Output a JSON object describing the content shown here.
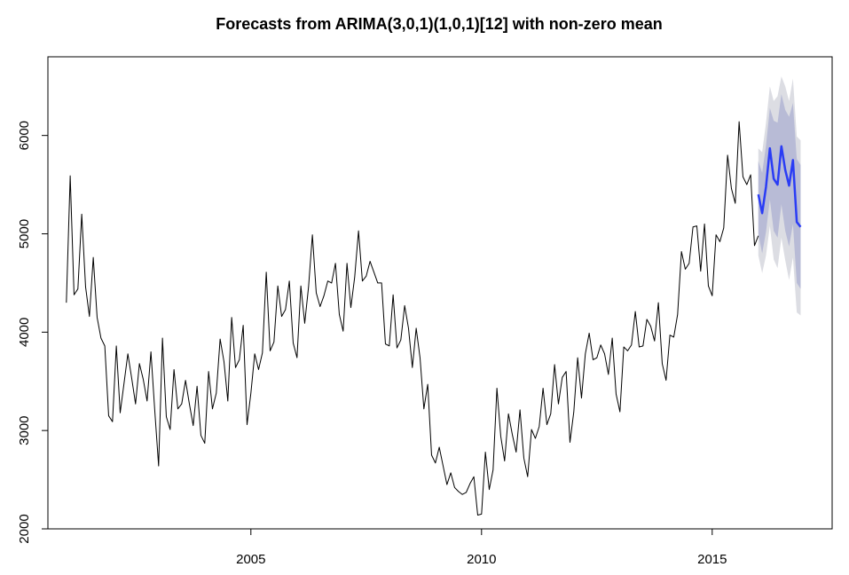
{
  "chart_data": {
    "type": "line",
    "title": "Forecasts from ARIMA(3,0,1)(1,0,1)[12] with non-zero mean",
    "xlabel": "",
    "ylabel": "",
    "xlim": [
      2000.6,
      2017.6
    ],
    "ylim": [
      2000,
      6800
    ],
    "x_ticks": [
      2005,
      2010,
      2015
    ],
    "y_ticks": [
      2000,
      3000,
      4000,
      5000,
      6000
    ],
    "x_tick_labels": [
      "2005",
      "2010",
      "2015"
    ],
    "y_tick_labels": [
      "2000",
      "3000",
      "4000",
      "5000",
      "6000"
    ],
    "grid": false,
    "legend": "none",
    "colors": {
      "history": "#000000",
      "forecast": "#2a3cf5",
      "band80": "#b8bbd6",
      "band95": "#dcdde3"
    },
    "history": {
      "start": 2001.0,
      "frequency": 12,
      "values": [
        4300,
        5590,
        4380,
        4440,
        5200,
        4460,
        4160,
        4760,
        4150,
        3940,
        3860,
        3150,
        3090,
        3860,
        3180,
        3480,
        3780,
        3530,
        3270,
        3680,
        3520,
        3300,
        3800,
        3200,
        2640,
        3940,
        3140,
        3010,
        3620,
        3220,
        3270,
        3510,
        3270,
        3050,
        3450,
        2950,
        2870,
        3600,
        3220,
        3380,
        3930,
        3700,
        3300,
        4150,
        3640,
        3720,
        4070,
        3060,
        3380,
        3780,
        3620,
        3790,
        4610,
        3810,
        3900,
        4470,
        4160,
        4230,
        4520,
        3890,
        3740,
        4470,
        4090,
        4460,
        4990,
        4400,
        4260,
        4370,
        4520,
        4500,
        4700,
        4180,
        4010,
        4700,
        4250,
        4560,
        5030,
        4520,
        4570,
        4720,
        4610,
        4500,
        4500,
        3880,
        3860,
        4380,
        3840,
        3920,
        4270,
        4040,
        3640,
        4040,
        3740,
        3220,
        3470,
        2750,
        2670,
        2830,
        2640,
        2450,
        2570,
        2420,
        2380,
        2350,
        2370,
        2460,
        2530,
        2140,
        2150,
        2780,
        2400,
        2600,
        3430,
        2940,
        2690,
        3170,
        2960,
        2780,
        3210,
        2720,
        2530,
        3010,
        2920,
        3040,
        3430,
        3060,
        3170,
        3670,
        3270,
        3540,
        3600,
        2880,
        3190,
        3740,
        3330,
        3780,
        3990,
        3720,
        3740,
        3870,
        3780,
        3570,
        3940,
        3370,
        3190,
        3850,
        3810,
        3870,
        4210,
        3850,
        3860,
        4130,
        4060,
        3910,
        4300,
        3680,
        3510,
        3970,
        3950,
        4180,
        4820,
        4640,
        4700,
        5070,
        5080,
        4620,
        5100,
        4470,
        4370,
        4990,
        4920,
        5060,
        5800,
        5460,
        5310,
        6140,
        5580,
        5500,
        5600,
        4880,
        4980
      ]
    },
    "forecast": {
      "start": 2016.0,
      "frequency": 12,
      "mean": [
        5400,
        5210,
        5480,
        5870,
        5560,
        5500,
        5890,
        5650,
        5490,
        5750,
        5120,
        5070
      ],
      "lo80": [
        5000,
        4800,
        5020,
        5350,
        5030,
        4960,
        5300,
        5030,
        4870,
        5100,
        4500,
        4440
      ],
      "hi80": [
        5740,
        5620,
        5900,
        6280,
        6150,
        6130,
        6420,
        6260,
        6190,
        6330,
        5760,
        5700
      ],
      "lo95": [
        4780,
        4600,
        4780,
        5080,
        4740,
        4650,
        4960,
        4730,
        4530,
        4760,
        4200,
        4170
      ],
      "hi95": [
        5870,
        5830,
        6130,
        6500,
        6350,
        6400,
        6600,
        6500,
        6350,
        6580,
        5990,
        5950
      ]
    }
  }
}
